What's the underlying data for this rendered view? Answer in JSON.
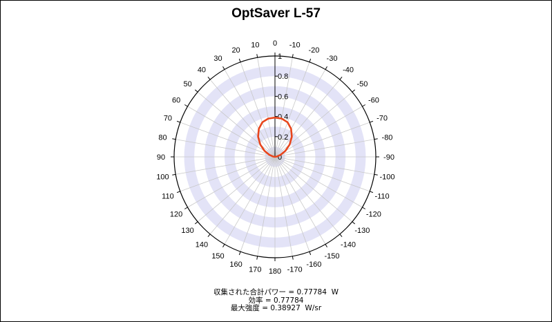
{
  "chart_data": {
    "type": "polar",
    "title": "OptSaver L-57",
    "angle_ticks": [
      "0",
      "10",
      "20",
      "30",
      "40",
      "50",
      "60",
      "70",
      "80",
      "90",
      "100",
      "110",
      "120",
      "130",
      "140",
      "150",
      "160",
      "170",
      "180",
      "-170",
      "-160",
      "-150",
      "-140",
      "-130",
      "-120",
      "-110",
      "-100",
      "-90",
      "-80",
      "-70",
      "-60",
      "-50",
      "-40",
      "-30",
      "-20",
      "-10"
    ],
    "radial_ticks": [
      "0",
      "0.2",
      "0.4",
      "0.6",
      "0.8",
      "1"
    ],
    "rlim": [
      0,
      1
    ],
    "series": [
      {
        "color": "#e8461c",
        "angles_deg": [
          -90,
          -80,
          -70,
          -60,
          -50,
          -40,
          -30,
          -20,
          -10,
          0,
          10,
          20,
          30,
          40,
          50,
          60,
          70,
          80,
          90
        ],
        "values": [
          0.0,
          0.02,
          0.06,
          0.12,
          0.19,
          0.26,
          0.32,
          0.365,
          0.385,
          0.389,
          0.385,
          0.365,
          0.32,
          0.26,
          0.19,
          0.12,
          0.06,
          0.02,
          0.0
        ]
      }
    ],
    "colors": {
      "band": "#e3e3f7",
      "grid": "#c8c8c8",
      "curve": "#e8461c",
      "axis": "#000000"
    }
  },
  "stats": {
    "power": "収集された合計パワー = 0.77784  W",
    "efficiency": "効率 = 0.77784",
    "max_intensity": "最大強度 = 0.38927  W/sr"
  }
}
